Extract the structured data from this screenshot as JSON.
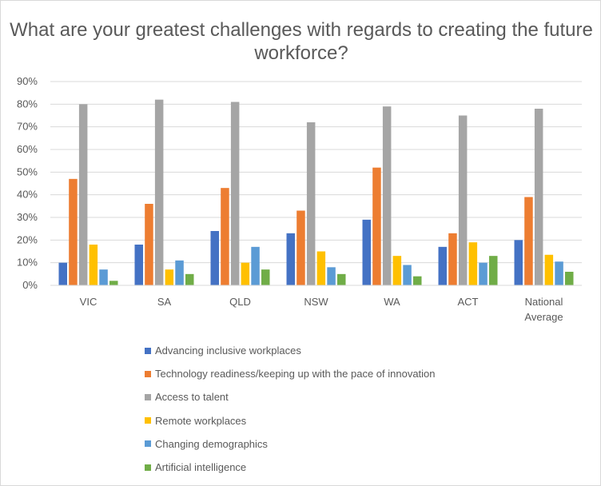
{
  "chart_data": {
    "type": "bar",
    "title": "What are your greatest challenges with regards to creating the future workforce?",
    "categories": [
      "VIC",
      "SA",
      "QLD",
      "NSW",
      "WA",
      "ACT",
      "National Average"
    ],
    "ylim": [
      0,
      90
    ],
    "yticks": [
      "0%",
      "10%",
      "20%",
      "30%",
      "40%",
      "50%",
      "60%",
      "70%",
      "80%",
      "90%"
    ],
    "grid": true,
    "legend_position": "bottom",
    "series": [
      {
        "name": "Advancing inclusive workplaces",
        "color": "#4472c4",
        "values": [
          10,
          18,
          24,
          23,
          29,
          17,
          20
        ]
      },
      {
        "name": "Technology readiness/keeping up with the pace of innovation",
        "color": "#ed7d31",
        "values": [
          47,
          36,
          43,
          33,
          52,
          23,
          39
        ]
      },
      {
        "name": "Access to talent",
        "color": "#a5a5a5",
        "values": [
          80,
          82,
          81,
          72,
          79,
          75,
          78
        ]
      },
      {
        "name": "Remote workplaces",
        "color": "#ffc000",
        "values": [
          18,
          7,
          10,
          15,
          13,
          19,
          13.5
        ]
      },
      {
        "name": "Changing demographics",
        "color": "#5b9bd5",
        "values": [
          7,
          11,
          17,
          8,
          9,
          10,
          10.5
        ]
      },
      {
        "name": "Artificial intelligence",
        "color": "#70ad47",
        "values": [
          2,
          5,
          7,
          5,
          4,
          13,
          6
        ]
      }
    ]
  }
}
